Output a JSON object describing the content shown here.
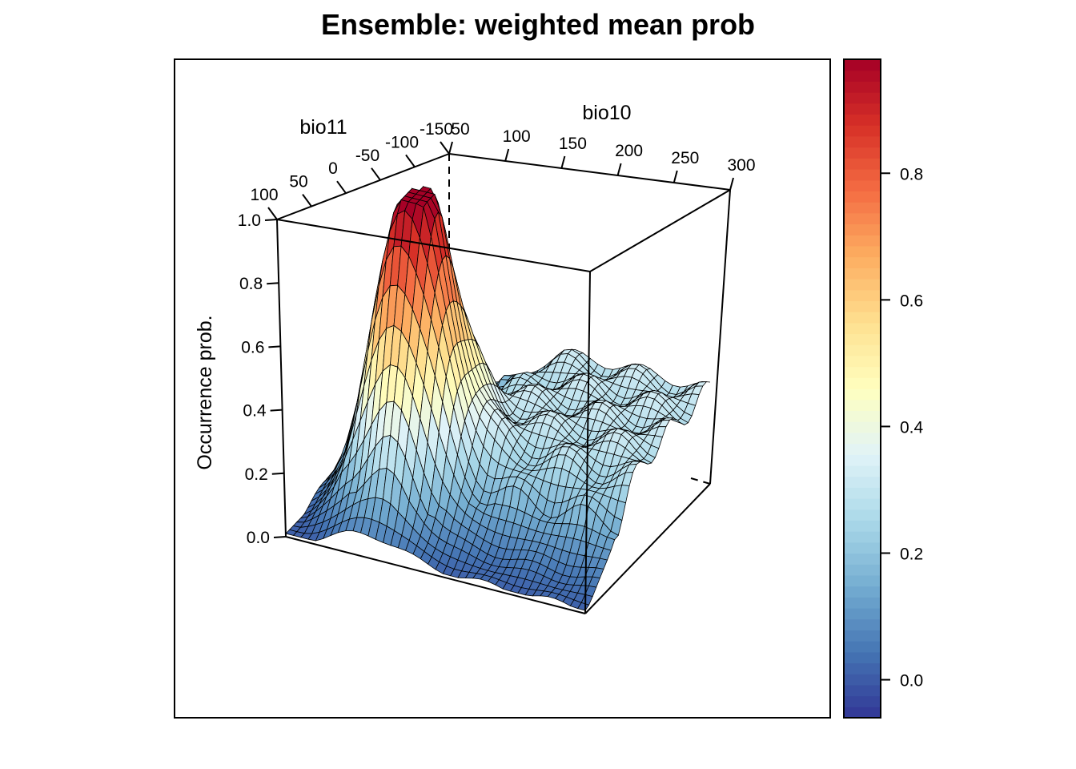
{
  "chart_data": {
    "type": "surface3d",
    "title": "Ensemble: weighted mean prob",
    "x_axis": {
      "label": "bio10",
      "range": [
        50,
        300
      ],
      "ticks": [
        50,
        100,
        150,
        200,
        250,
        300
      ]
    },
    "y_axis": {
      "label": "bio11",
      "range": [
        -150,
        100
      ],
      "ticks": [
        100,
        50,
        0,
        -50,
        -100,
        -150
      ]
    },
    "z_axis": {
      "label": "Occurrence prob.",
      "range": [
        0,
        1
      ],
      "ticks": [
        "0.0",
        "0.2",
        "0.4",
        "0.6",
        "0.8",
        "1.0"
      ]
    },
    "peak": {
      "bio10": 120,
      "bio11": 10,
      "prob": 0.98
    },
    "colorbar": {
      "range": [
        -0.06,
        0.98
      ],
      "ticks": [
        "0.0",
        "0.2",
        "0.4",
        "0.6",
        "0.8"
      ],
      "palette": [
        "#313695",
        "#4575b4",
        "#74add1",
        "#abd9e9",
        "#e0f3f8",
        "#ffffbf",
        "#fee090",
        "#fdae61",
        "#f46d43",
        "#d73027",
        "#a50026"
      ]
    },
    "grid": false,
    "legend": "right"
  }
}
